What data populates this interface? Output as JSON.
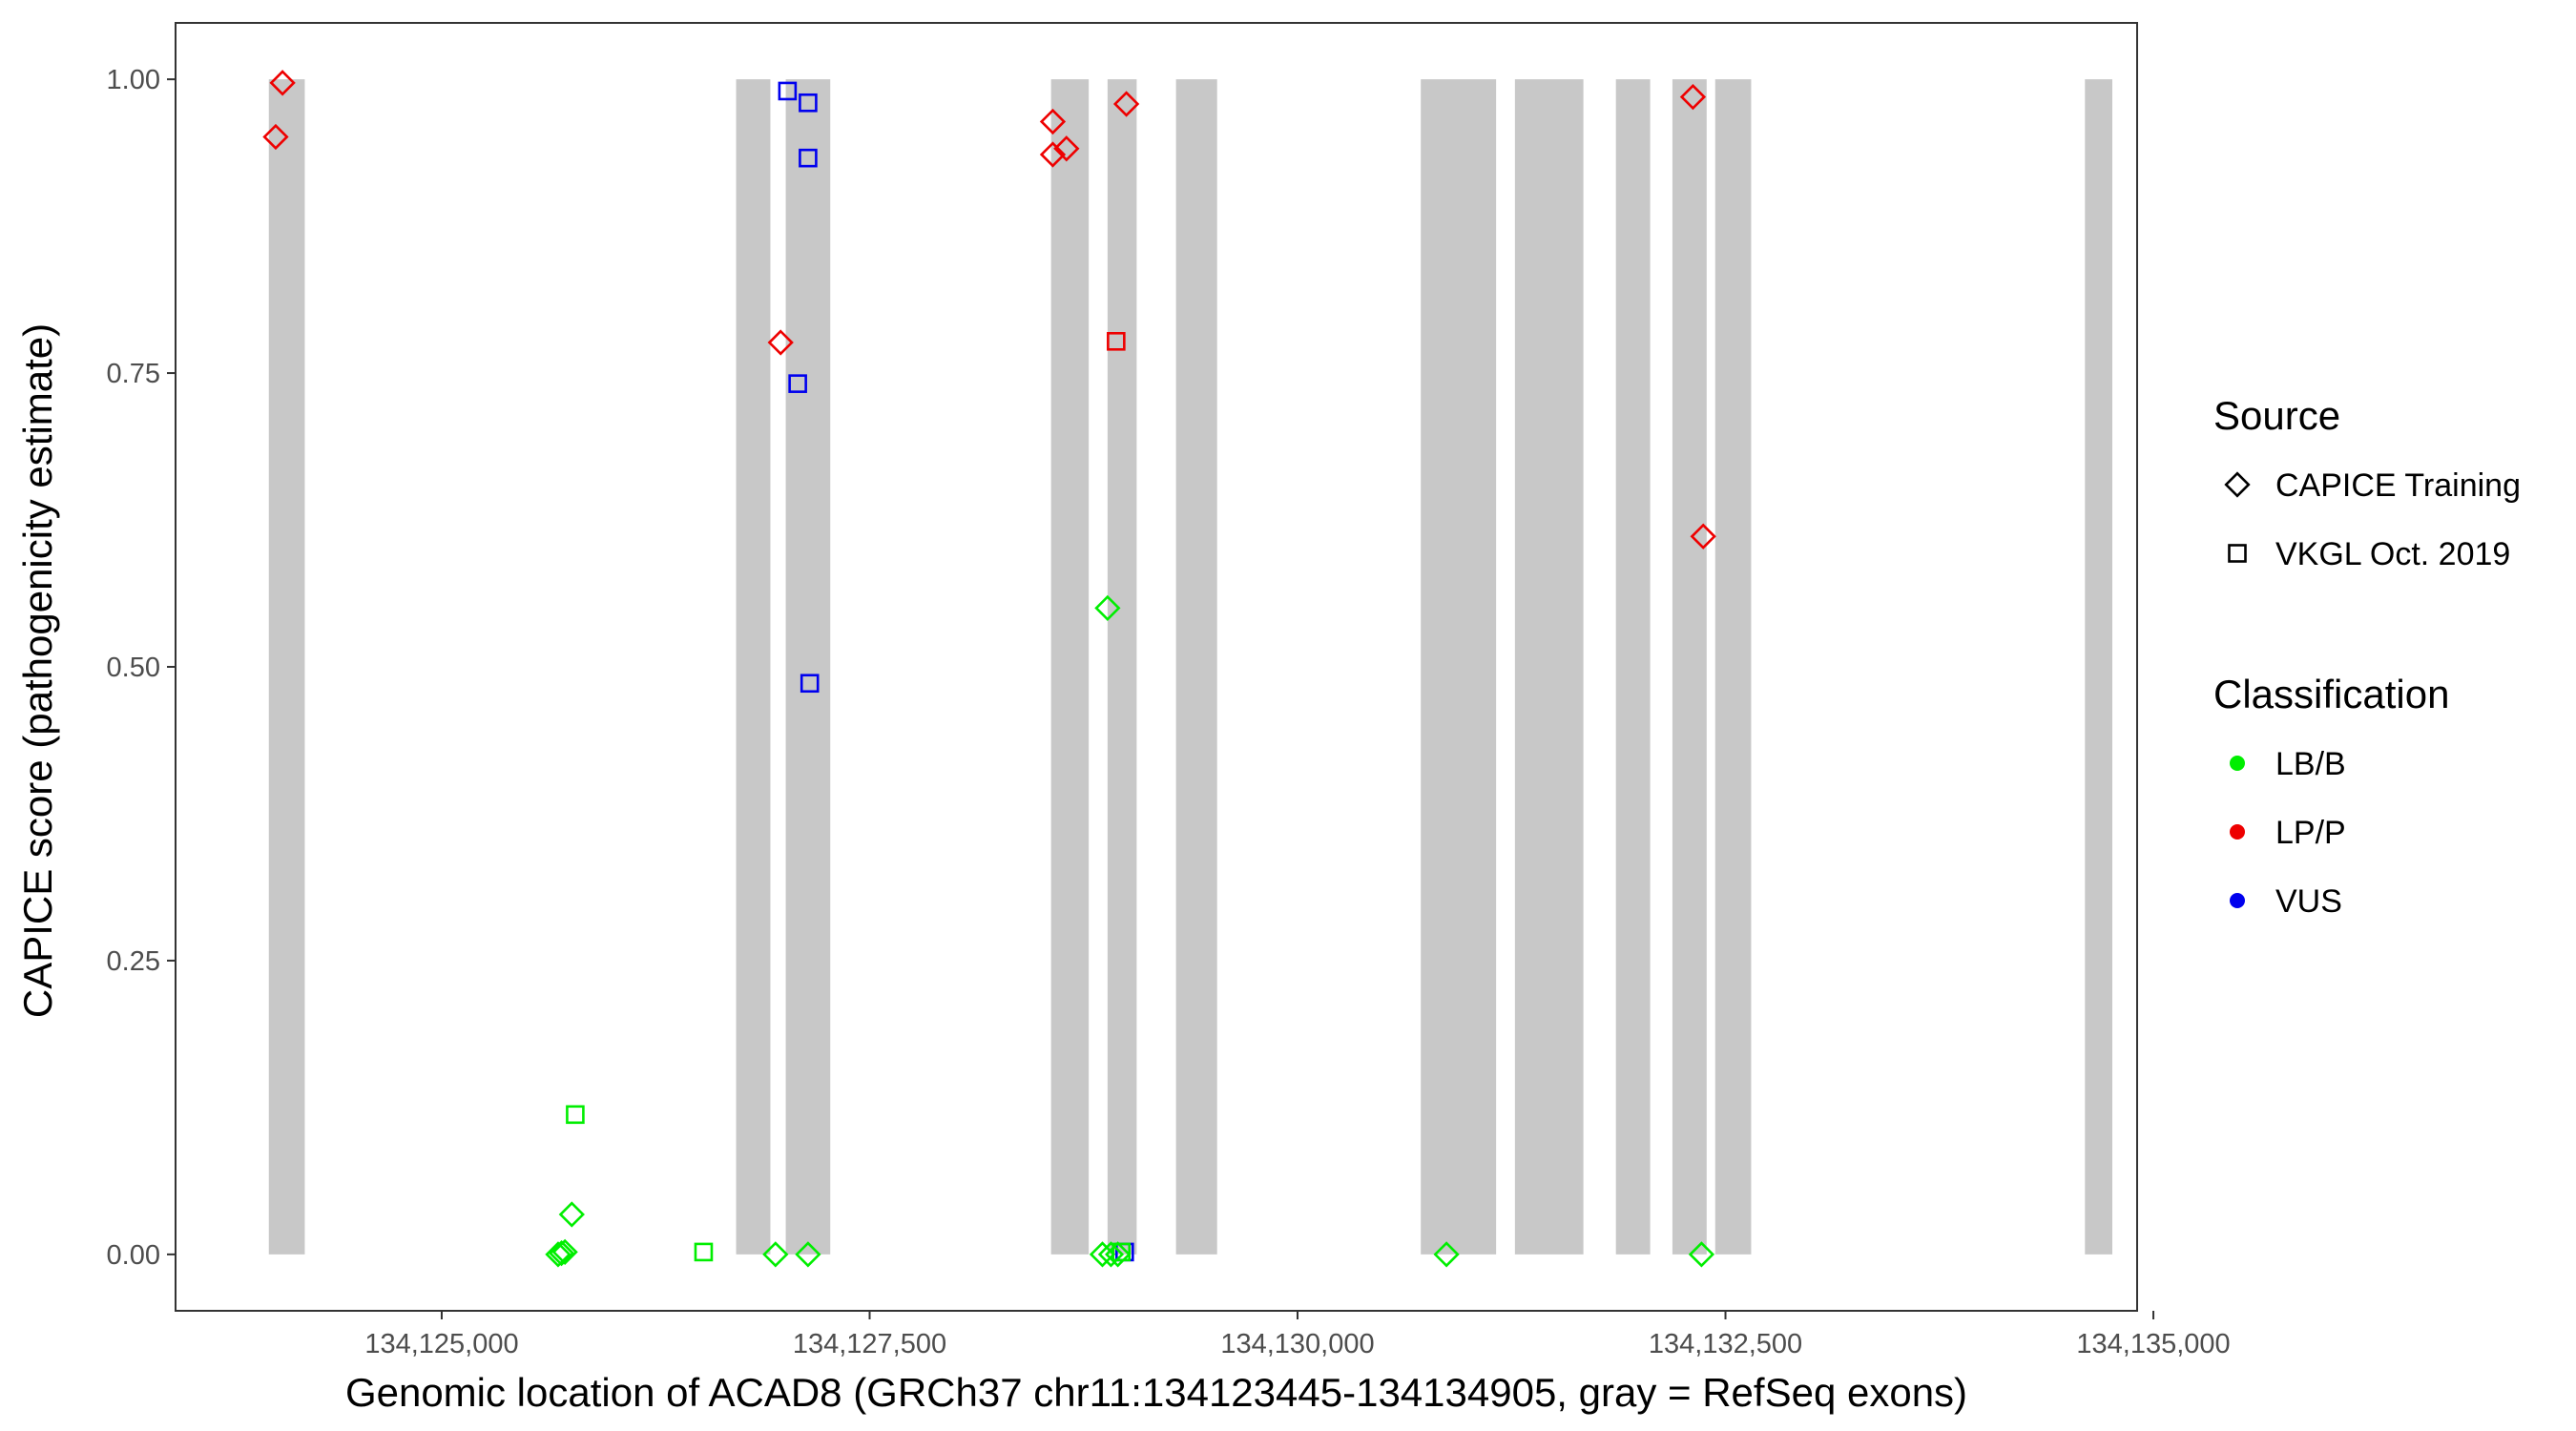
{
  "chart_data": {
    "type": "scatter",
    "xlabel": "Genomic location of ACAD8 (GRCh37 chr11:134123445-134134905, gray = RefSeq exons)",
    "ylabel": "CAPICE score (pathogenicity estimate)",
    "xlim": [
      134123445,
      134134905
    ],
    "ylim": [
      -0.048,
      1.048
    ],
    "x_ticks": [
      134125000,
      134127500,
      134130000,
      134132500,
      134135000
    ],
    "x_tick_labels": [
      "134,125,000",
      "134,127,500",
      "134,130,000",
      "134,132,500",
      "134,135,000"
    ],
    "y_ticks": [
      0,
      0.25,
      0.5,
      0.75,
      1.0
    ],
    "y_tick_labels": [
      "0.00",
      "0.25",
      "0.50",
      "0.75",
      "1.00"
    ],
    "grid": false,
    "exons": [
      [
        134123990,
        134124200
      ],
      [
        134126720,
        134126920
      ],
      [
        134127010,
        134127270
      ],
      [
        134128560,
        134128780
      ],
      [
        134128890,
        134129060
      ],
      [
        134129290,
        134129530
      ],
      [
        134130720,
        134131160
      ],
      [
        134131270,
        134131670
      ],
      [
        134131860,
        134132060
      ],
      [
        134132190,
        134132390
      ],
      [
        134132440,
        134132650
      ],
      [
        134134600,
        134134760
      ]
    ],
    "legend": {
      "source_title": "Source",
      "source_items": [
        {
          "label": "CAPICE Training",
          "shape": "diamond"
        },
        {
          "label": "VKGL Oct. 2019",
          "shape": "square"
        }
      ],
      "class_title": "Classification",
      "class_items": [
        {
          "label": "LB/B",
          "color": "#00ee00"
        },
        {
          "label": "LP/P",
          "color": "#ee0000"
        },
        {
          "label": "VUS",
          "color": "#0000ee"
        }
      ]
    },
    "colors": {
      "LB/B": "#00ee00",
      "LP/P": "#ee0000",
      "VUS": "#0000ee",
      "exon": "#c8c8c8"
    },
    "points": [
      {
        "x": 134124030,
        "y": 0.951,
        "source": "CAPICE Training",
        "class": "LP/P"
      },
      {
        "x": 134124070,
        "y": 0.997,
        "source": "CAPICE Training",
        "class": "LP/P"
      },
      {
        "x": 134126980,
        "y": 0.776,
        "source": "CAPICE Training",
        "class": "LP/P"
      },
      {
        "x": 134128570,
        "y": 0.964,
        "source": "CAPICE Training",
        "class": "LP/P"
      },
      {
        "x": 134128570,
        "y": 0.936,
        "source": "CAPICE Training",
        "class": "LP/P"
      },
      {
        "x": 134128650,
        "y": 0.941,
        "source": "CAPICE Training",
        "class": "LP/P"
      },
      {
        "x": 134129000,
        "y": 0.979,
        "source": "CAPICE Training",
        "class": "LP/P"
      },
      {
        "x": 134132310,
        "y": 0.985,
        "source": "CAPICE Training",
        "class": "LP/P"
      },
      {
        "x": 134132370,
        "y": 0.611,
        "source": "CAPICE Training",
        "class": "LP/P"
      },
      {
        "x": 134128940,
        "y": 0.777,
        "source": "VKGL Oct. 2019",
        "class": "LP/P"
      },
      {
        "x": 134127020,
        "y": 0.99,
        "source": "VKGL Oct. 2019",
        "class": "VUS"
      },
      {
        "x": 134127140,
        "y": 0.98,
        "source": "VKGL Oct. 2019",
        "class": "VUS"
      },
      {
        "x": 134127140,
        "y": 0.933,
        "source": "VKGL Oct. 2019",
        "class": "VUS"
      },
      {
        "x": 134127080,
        "y": 0.741,
        "source": "VKGL Oct. 2019",
        "class": "VUS"
      },
      {
        "x": 134127150,
        "y": 0.486,
        "source": "VKGL Oct. 2019",
        "class": "VUS"
      },
      {
        "x": 134128990,
        "y": 0.002,
        "source": "VKGL Oct. 2019",
        "class": "VUS"
      },
      {
        "x": 134125780,
        "y": 0.119,
        "source": "VKGL Oct. 2019",
        "class": "LB/B"
      },
      {
        "x": 134126530,
        "y": 0.002,
        "source": "VKGL Oct. 2019",
        "class": "LB/B"
      },
      {
        "x": 134128970,
        "y": 0.002,
        "source": "VKGL Oct. 2019",
        "class": "LB/B"
      },
      {
        "x": 134125760,
        "y": 0.034,
        "source": "CAPICE Training",
        "class": "LB/B"
      },
      {
        "x": 134125680,
        "y": 0.0,
        "source": "CAPICE Training",
        "class": "LB/B"
      },
      {
        "x": 134125700,
        "y": 0.001,
        "source": "CAPICE Training",
        "class": "LB/B"
      },
      {
        "x": 134125720,
        "y": 0.002,
        "source": "CAPICE Training",
        "class": "LB/B"
      },
      {
        "x": 134126950,
        "y": 0.0,
        "source": "CAPICE Training",
        "class": "LB/B"
      },
      {
        "x": 134127140,
        "y": 0.0,
        "source": "CAPICE Training",
        "class": "LB/B"
      },
      {
        "x": 134128890,
        "y": 0.55,
        "source": "CAPICE Training",
        "class": "LB/B"
      },
      {
        "x": 134128860,
        "y": 0.0,
        "source": "CAPICE Training",
        "class": "LB/B"
      },
      {
        "x": 134128910,
        "y": 0.0,
        "source": "CAPICE Training",
        "class": "LB/B"
      },
      {
        "x": 134128950,
        "y": 0.0,
        "source": "CAPICE Training",
        "class": "LB/B"
      },
      {
        "x": 134130870,
        "y": 0.0,
        "source": "CAPICE Training",
        "class": "LB/B"
      },
      {
        "x": 134132360,
        "y": 0.0,
        "source": "CAPICE Training",
        "class": "LB/B"
      }
    ]
  }
}
